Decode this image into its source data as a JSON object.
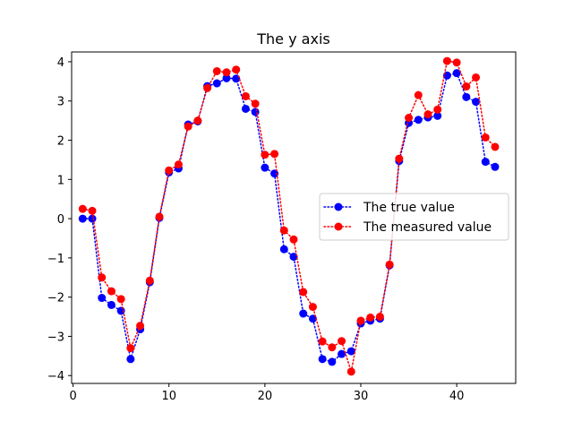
{
  "chart_data": {
    "type": "line",
    "title": "The y axis",
    "xlabel": "",
    "ylabel": "",
    "xlim": [
      -0.15,
      46.15
    ],
    "ylim": [
      -4.2,
      4.25
    ],
    "xticks": [
      0,
      10,
      20,
      30,
      40
    ],
    "xtick_labels": [
      "0",
      "10",
      "20",
      "30",
      "40"
    ],
    "yticks": [
      -4,
      -3,
      -2,
      -1,
      0,
      1,
      2,
      3,
      4
    ],
    "ytick_labels": [
      "−4",
      "−3",
      "−2",
      "−1",
      "0",
      "1",
      "2",
      "3",
      "4"
    ],
    "grid": false,
    "legend_position": "center-right",
    "x": [
      1,
      2,
      3,
      4,
      5,
      6,
      7,
      8,
      9,
      10,
      11,
      12,
      13,
      14,
      15,
      16,
      17,
      18,
      19,
      20,
      21,
      22,
      23,
      24,
      25,
      26,
      27,
      28,
      29,
      30,
      31,
      32,
      33,
      34,
      35,
      36,
      37,
      38,
      39,
      40,
      41,
      42,
      43,
      44
    ],
    "series": [
      {
        "name": "The true value",
        "color": "#0000ff",
        "linestyle": "dotted",
        "marker": "circle",
        "values": [
          0.0,
          0.0,
          -2.02,
          -2.2,
          -2.35,
          -3.58,
          -2.82,
          -1.62,
          0.02,
          1.18,
          1.28,
          2.4,
          2.48,
          3.38,
          3.45,
          3.58,
          3.57,
          2.8,
          2.72,
          1.3,
          1.15,
          -0.78,
          -0.97,
          -2.42,
          -2.55,
          -3.58,
          -3.65,
          -3.45,
          -3.38,
          -2.67,
          -2.6,
          -2.55,
          -1.19,
          1.47,
          2.44,
          2.52,
          2.58,
          2.62,
          3.65,
          3.71,
          3.1,
          2.98,
          1.45,
          1.32
        ]
      },
      {
        "name": "The measured value",
        "color": "#ff0000",
        "linestyle": "dotted",
        "marker": "circle",
        "values": [
          0.25,
          0.2,
          -1.5,
          -1.85,
          -2.05,
          -3.3,
          -2.73,
          -1.58,
          0.05,
          1.23,
          1.38,
          2.35,
          2.5,
          3.33,
          3.76,
          3.73,
          3.8,
          3.12,
          2.93,
          1.63,
          1.65,
          -0.3,
          -0.53,
          -1.87,
          -2.25,
          -3.13,
          -3.28,
          -3.12,
          -3.9,
          -2.6,
          -2.52,
          -2.5,
          -1.17,
          1.53,
          2.57,
          3.15,
          2.66,
          2.78,
          4.02,
          3.98,
          3.37,
          3.6,
          2.07,
          1.83
        ]
      }
    ]
  }
}
